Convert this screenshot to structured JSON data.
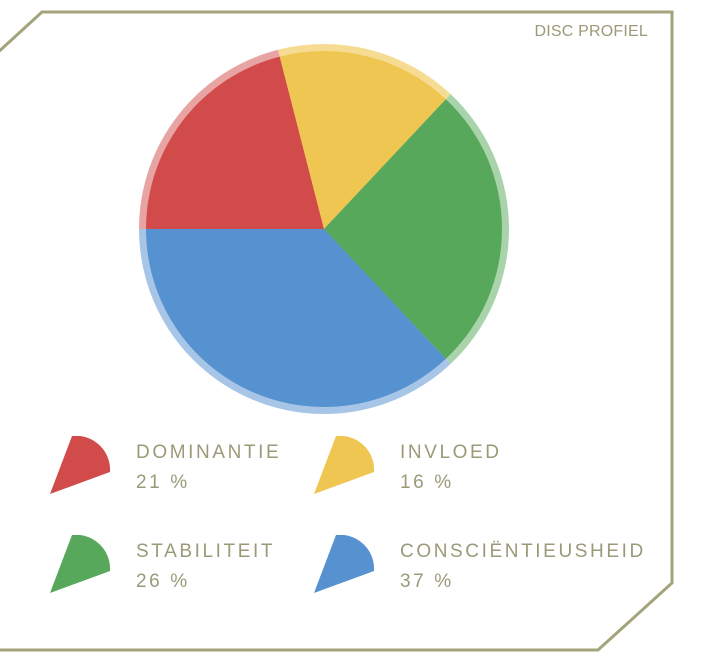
{
  "card": {
    "title": "DISC PROFIEL"
  },
  "chart_data": {
    "type": "pie",
    "title": "",
    "categories": [
      "DOMINANTIE",
      "INVLOED",
      "STABILITEIT",
      "CONSCIËNTIEUSHEID"
    ],
    "values": [
      21,
      16,
      26,
      37
    ],
    "value_labels": [
      "21 %",
      "16 %",
      "26 %",
      "37 %"
    ],
    "colors": [
      "#d24b4b",
      "#f0c652",
      "#57a85a",
      "#5592cf"
    ],
    "ring_colors": [
      "#e8a3a3",
      "#f6dc92",
      "#a9d3aa",
      "#a7c6e7"
    ],
    "start_angle_deg": 180,
    "direction": "clockwise",
    "legend_position": "bottom"
  },
  "legend": [
    {
      "label": "DOMINANTIE",
      "value": "21 %"
    },
    {
      "label": "INVLOED",
      "value": "16 %"
    },
    {
      "label": "STABILITEIT",
      "value": "26 %"
    },
    {
      "label": "CONSCIËNTIEUSHEID",
      "value": "37 %"
    }
  ]
}
